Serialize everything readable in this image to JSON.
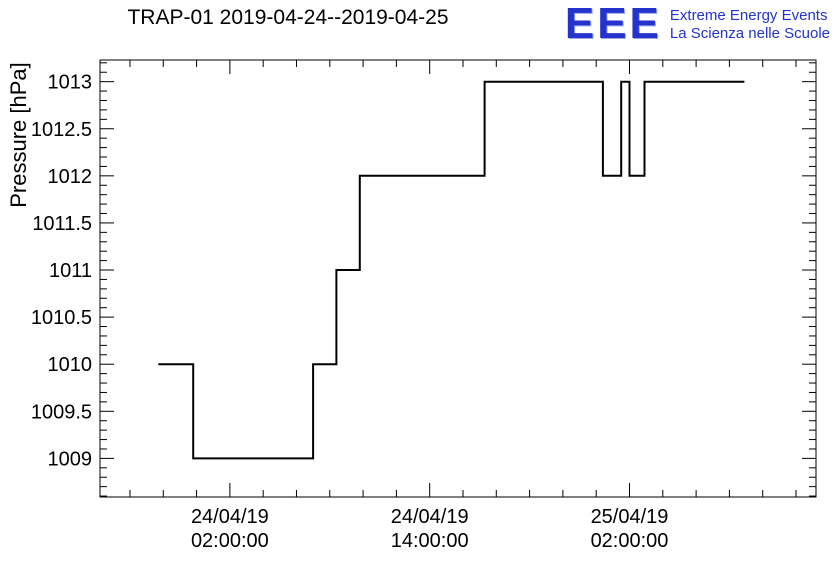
{
  "logo": {
    "text": "EEE",
    "line1": "Extreme Energy Events",
    "line2": "La Scienza nelle Scuole",
    "color": "#2333cc"
  },
  "chart_data": {
    "type": "line",
    "step": true,
    "title": "TRAP-01 2019-04-24--2019-04-25",
    "xlabel": "",
    "ylabel": "Pressure [hPa]",
    "ylim": [
      1008.59,
      1013.23
    ],
    "xlim_hours": [
      -5.8,
      37.2
    ],
    "x_reference": "hours from 2019-04-24 00:00:00",
    "grid": false,
    "legend": "none",
    "line_color": "#000000",
    "y_major_ticks": [
      "1009",
      "1009.5",
      "1010",
      "1010.5",
      "1011",
      "1011.5",
      "1012",
      "1012.5",
      "1013"
    ],
    "y_minor_step": 0.1,
    "x_major_ticks": [
      {
        "hour": 2,
        "line1": "24/04/19",
        "line2": "02:00:00"
      },
      {
        "hour": 14,
        "line1": "24/04/19",
        "line2": "14:00:00"
      },
      {
        "hour": 26,
        "line1": "25/04/19",
        "line2": "02:00:00"
      }
    ],
    "x_minor_step_hours": 2,
    "series": [
      {
        "name": "pressure",
        "points": [
          [
            -2.3,
            1010
          ],
          [
            -0.2,
            1010
          ],
          [
            -0.2,
            1009
          ],
          [
            7.0,
            1009
          ],
          [
            7.0,
            1010
          ],
          [
            8.4,
            1010
          ],
          [
            8.4,
            1011
          ],
          [
            9.8,
            1011
          ],
          [
            9.8,
            1012
          ],
          [
            17.3,
            1012
          ],
          [
            17.3,
            1013
          ],
          [
            24.4,
            1013
          ],
          [
            24.4,
            1012
          ],
          [
            25.5,
            1012
          ],
          [
            25.5,
            1013
          ],
          [
            26.0,
            1013
          ],
          [
            26.0,
            1012
          ],
          [
            26.9,
            1012
          ],
          [
            26.9,
            1013
          ],
          [
            32.9,
            1013
          ]
        ]
      }
    ]
  }
}
